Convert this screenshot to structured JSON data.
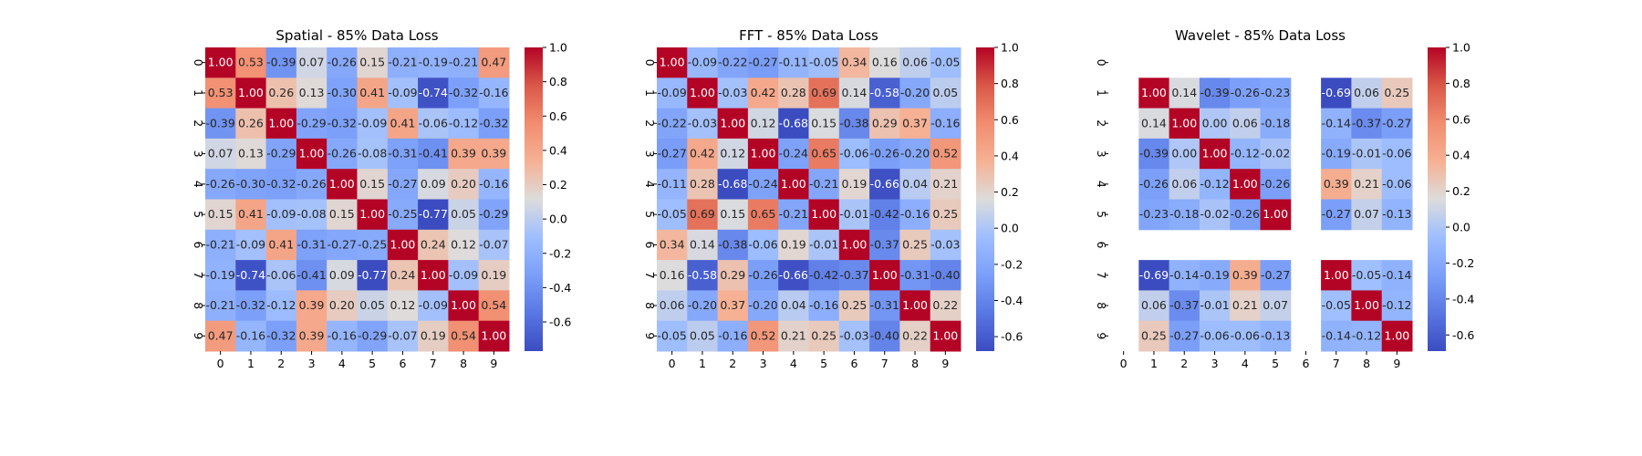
{
  "chart_data": [
    {
      "type": "heatmap",
      "title": "Spatial - 85% Data Loss",
      "x_ticks": [
        "0",
        "1",
        "2",
        "3",
        "4",
        "5",
        "6",
        "7",
        "8",
        "9"
      ],
      "y_ticks": [
        "0",
        "1",
        "2",
        "3",
        "4",
        "5",
        "6",
        "7",
        "8",
        "9"
      ],
      "colorbar": {
        "ticks": [
          "-0.6",
          "-0.4",
          "-0.2",
          "0.0",
          "0.2",
          "0.4",
          "0.6",
          "0.8",
          "1.0"
        ],
        "vmin": -0.77,
        "vmax": 1.0,
        "colormap": "coolwarm"
      },
      "matrix": [
        [
          1.0,
          0.53,
          -0.39,
          0.07,
          -0.26,
          0.15,
          -0.21,
          -0.19,
          -0.21,
          0.47
        ],
        [
          0.53,
          1.0,
          0.26,
          0.13,
          -0.3,
          0.41,
          -0.09,
          -0.74,
          -0.32,
          -0.16
        ],
        [
          -0.39,
          0.26,
          1.0,
          -0.29,
          -0.32,
          -0.09,
          0.41,
          -0.06,
          -0.12,
          -0.32
        ],
        [
          0.07,
          0.13,
          -0.29,
          1.0,
          -0.26,
          -0.08,
          -0.31,
          -0.41,
          0.39,
          0.39
        ],
        [
          -0.26,
          -0.3,
          -0.32,
          -0.26,
          1.0,
          0.15,
          -0.27,
          0.09,
          0.2,
          -0.16
        ],
        [
          0.15,
          0.41,
          -0.09,
          -0.08,
          0.15,
          1.0,
          -0.25,
          -0.77,
          0.05,
          -0.29
        ],
        [
          -0.21,
          -0.09,
          0.41,
          -0.31,
          -0.27,
          -0.25,
          1.0,
          0.24,
          0.12,
          -0.07
        ],
        [
          -0.19,
          -0.74,
          -0.06,
          -0.41,
          0.09,
          -0.77,
          0.24,
          1.0,
          -0.09,
          0.19
        ],
        [
          -0.21,
          -0.32,
          -0.12,
          0.39,
          0.2,
          0.05,
          0.12,
          -0.09,
          1.0,
          0.54
        ],
        [
          0.47,
          -0.16,
          -0.32,
          0.39,
          -0.16,
          -0.29,
          -0.07,
          0.19,
          0.54,
          1.0
        ]
      ],
      "labels": [
        [
          "1.00",
          "0.53",
          "-0.39",
          "0.07",
          "-0.26",
          "0.15",
          "-0.21",
          "-0.19",
          "-0.21",
          "0.47"
        ],
        [
          "0.53",
          "1.00",
          "0.26",
          "0.13",
          "-0.30",
          "0.41",
          "-0.09",
          "-0.74",
          "-0.32",
          "-0.16"
        ],
        [
          "-0.39",
          "0.26",
          "1.00",
          "-0.29",
          "-0.32",
          "-0.09",
          "0.41",
          "-0.06",
          "-0.12",
          "-0.32"
        ],
        [
          "0.07",
          "0.13",
          "-0.29",
          "1.00",
          "-0.26",
          "-0.08",
          "-0.31",
          "-0.41",
          "0.39",
          "0.39"
        ],
        [
          "-0.26",
          "-0.30",
          "-0.32",
          "-0.26",
          "1.00",
          "0.15",
          "-0.27",
          "0.09",
          "0.20",
          "-0.16"
        ],
        [
          "0.15",
          "0.41",
          "-0.09",
          "-0.08",
          "0.15",
          "1.00",
          "-0.25",
          "-0.77",
          "0.05",
          "-0.29"
        ],
        [
          "-0.21",
          "-0.09",
          "0.41",
          "-0.31",
          "-0.27",
          "-0.25",
          "1.00",
          "0.24",
          "0.12",
          "-0.07"
        ],
        [
          "-0.19",
          "-0.74",
          "-0.06",
          "-0.41",
          "0.09",
          "-0.77",
          "0.24",
          "1.00",
          "-0.09",
          "0.19"
        ],
        [
          "-0.21",
          "-0.32",
          "-0.12",
          "0.39",
          "0.20",
          "0.05",
          "0.12",
          "-0.09",
          "1.00",
          "0.54"
        ],
        [
          "0.47",
          "-0.16",
          "-0.32",
          "0.39",
          "-0.16",
          "-0.29",
          "-0.07",
          "0.19",
          "0.54",
          "1.00"
        ]
      ]
    },
    {
      "type": "heatmap",
      "title": "FFT - 85% Data Loss",
      "x_ticks": [
        "0",
        "1",
        "2",
        "3",
        "4",
        "5",
        "6",
        "7",
        "8",
        "9"
      ],
      "y_ticks": [
        "0",
        "1",
        "2",
        "3",
        "4",
        "5",
        "6",
        "7",
        "8",
        "9"
      ],
      "colorbar": {
        "ticks": [
          "-0.6",
          "-0.4",
          "-0.2",
          "0.0",
          "0.2",
          "0.4",
          "0.6",
          "0.8",
          "1.0"
        ],
        "vmin": -0.68,
        "vmax": 1.0,
        "colormap": "coolwarm"
      },
      "matrix": [
        [
          1.0,
          -0.09,
          -0.22,
          -0.27,
          -0.11,
          -0.05,
          0.34,
          0.16,
          0.06,
          -0.05
        ],
        [
          -0.09,
          1.0,
          -0.03,
          0.42,
          0.28,
          0.69,
          0.14,
          -0.58,
          -0.2,
          0.05
        ],
        [
          -0.22,
          -0.03,
          1.0,
          0.12,
          -0.68,
          0.15,
          -0.38,
          0.29,
          0.37,
          -0.16
        ],
        [
          -0.27,
          0.42,
          0.12,
          1.0,
          -0.24,
          0.65,
          -0.06,
          -0.26,
          -0.2,
          0.52
        ],
        [
          -0.11,
          0.28,
          -0.68,
          -0.24,
          1.0,
          -0.21,
          0.19,
          -0.66,
          0.04,
          0.21
        ],
        [
          -0.05,
          0.69,
          0.15,
          0.65,
          -0.21,
          1.0,
          -0.01,
          -0.42,
          -0.16,
          0.25
        ],
        [
          0.34,
          0.14,
          -0.38,
          -0.06,
          0.19,
          -0.01,
          1.0,
          -0.37,
          0.25,
          -0.03
        ],
        [
          0.16,
          -0.58,
          0.29,
          -0.26,
          -0.66,
          -0.42,
          -0.37,
          1.0,
          -0.31,
          -0.4
        ],
        [
          0.06,
          -0.2,
          0.37,
          -0.2,
          0.04,
          -0.16,
          0.25,
          -0.31,
          1.0,
          0.22
        ],
        [
          -0.05,
          0.05,
          -0.16,
          0.52,
          0.21,
          0.25,
          -0.03,
          -0.4,
          0.22,
          1.0
        ]
      ],
      "labels": [
        [
          "1.00",
          "-0.09",
          "-0.22",
          "-0.27",
          "-0.11",
          "-0.05",
          "0.34",
          "0.16",
          "0.06",
          "-0.05"
        ],
        [
          "-0.09",
          "1.00",
          "-0.03",
          "0.42",
          "0.28",
          "0.69",
          "0.14",
          "-0.58",
          "-0.20",
          "0.05"
        ],
        [
          "-0.22",
          "-0.03",
          "1.00",
          "0.12",
          "-0.68",
          "0.15",
          "-0.38",
          "0.29",
          "0.37",
          "-0.16"
        ],
        [
          "-0.27",
          "0.42",
          "0.12",
          "1.00",
          "-0.24",
          "0.65",
          "-0.06",
          "-0.26",
          "-0.20",
          "0.52"
        ],
        [
          "-0.11",
          "0.28",
          "-0.68",
          "-0.24",
          "1.00",
          "-0.21",
          "0.19",
          "-0.66",
          "0.04",
          "0.21"
        ],
        [
          "-0.05",
          "0.69",
          "0.15",
          "0.65",
          "-0.21",
          "1.00",
          "-0.01",
          "-0.42",
          "-0.16",
          "0.25"
        ],
        [
          "0.34",
          "0.14",
          "-0.38",
          "-0.06",
          "0.19",
          "-0.01",
          "1.00",
          "-0.37",
          "0.25",
          "-0.03"
        ],
        [
          "0.16",
          "-0.58",
          "0.29",
          "-0.26",
          "-0.66",
          "-0.42",
          "-0.37",
          "1.00",
          "-0.31",
          "-0.40"
        ],
        [
          "0.06",
          "-0.20",
          "0.37",
          "-0.20",
          "0.04",
          "-0.16",
          "0.25",
          "-0.31",
          "1.00",
          "0.22"
        ],
        [
          "-0.05",
          "0.05",
          "-0.16",
          "0.52",
          "0.21",
          "0.25",
          "-0.03",
          "-0.40",
          "0.22",
          "1.00"
        ]
      ]
    },
    {
      "type": "heatmap",
      "title": "Wavelet - 85% Data Loss",
      "x_ticks": [
        "0",
        "1",
        "2",
        "3",
        "4",
        "5",
        "6",
        "7",
        "8",
        "9"
      ],
      "y_ticks": [
        "0",
        "1",
        "2",
        "3",
        "4",
        "5",
        "6",
        "7",
        "8",
        "9"
      ],
      "colorbar": {
        "ticks": [
          "-0.6",
          "-0.4",
          "-0.2",
          "0.0",
          "0.2",
          "0.4",
          "0.6",
          "0.8",
          "1.0"
        ],
        "vmin": -0.69,
        "vmax": 1.0,
        "colormap": "coolwarm"
      },
      "matrix": [
        [
          null,
          null,
          null,
          null,
          null,
          null,
          null,
          null,
          null,
          null
        ],
        [
          null,
          1.0,
          0.14,
          -0.39,
          -0.26,
          -0.23,
          null,
          -0.69,
          0.06,
          0.25
        ],
        [
          null,
          0.14,
          1.0,
          0.0,
          0.06,
          -0.18,
          null,
          -0.14,
          -0.37,
          -0.27
        ],
        [
          null,
          -0.39,
          0.0,
          1.0,
          -0.12,
          -0.02,
          null,
          -0.19,
          -0.01,
          -0.06
        ],
        [
          null,
          -0.26,
          0.06,
          -0.12,
          1.0,
          -0.26,
          null,
          0.39,
          0.21,
          -0.06
        ],
        [
          null,
          -0.23,
          -0.18,
          -0.02,
          -0.26,
          1.0,
          null,
          -0.27,
          0.07,
          -0.13
        ],
        [
          null,
          null,
          null,
          null,
          null,
          null,
          null,
          null,
          null,
          null
        ],
        [
          null,
          -0.69,
          -0.14,
          -0.19,
          0.39,
          -0.27,
          null,
          1.0,
          -0.05,
          -0.14
        ],
        [
          null,
          0.06,
          -0.37,
          -0.01,
          0.21,
          0.07,
          null,
          -0.05,
          1.0,
          -0.12
        ],
        [
          null,
          0.25,
          -0.27,
          -0.06,
          -0.06,
          -0.13,
          null,
          -0.14,
          -0.12,
          1.0
        ]
      ],
      "labels": [
        [
          "",
          "",
          "",
          "",
          "",
          "",
          "",
          "",
          "",
          ""
        ],
        [
          "",
          "1.00",
          "0.14",
          "-0.39",
          "-0.26",
          "-0.23",
          "",
          "-0.69",
          "0.06",
          "0.25"
        ],
        [
          "",
          "0.14",
          "1.00",
          "0.00",
          "0.06",
          "-0.18",
          "",
          "-0.14",
          "-0.37",
          "-0.27"
        ],
        [
          "",
          "-0.39",
          "0.00",
          "1.00",
          "-0.12",
          "-0.02",
          "",
          "-0.19",
          "-0.01",
          "-0.06"
        ],
        [
          "",
          "-0.26",
          "0.06",
          "-0.12",
          "1.00",
          "-0.26",
          "",
          "0.39",
          "0.21",
          "-0.06"
        ],
        [
          "",
          "-0.23",
          "-0.18",
          "-0.02",
          "-0.26",
          "1.00",
          "",
          "-0.27",
          "0.07",
          "-0.13"
        ],
        [
          "",
          "",
          "",
          "",
          "",
          "",
          "",
          "",
          "",
          ""
        ],
        [
          "",
          "-0.69",
          "-0.14",
          "-0.19",
          "0.39",
          "-0.27",
          "",
          "1.00",
          "-0.05",
          "-0.14"
        ],
        [
          "",
          "0.06",
          "-0.37",
          "-0.01",
          "0.21",
          "0.07",
          "",
          "-0.05",
          "1.00",
          "-0.12"
        ],
        [
          "",
          "0.25",
          "-0.27",
          "-0.06",
          "-0.06",
          "-0.13",
          "",
          "-0.14",
          "-0.12",
          "1.00"
        ]
      ]
    }
  ]
}
